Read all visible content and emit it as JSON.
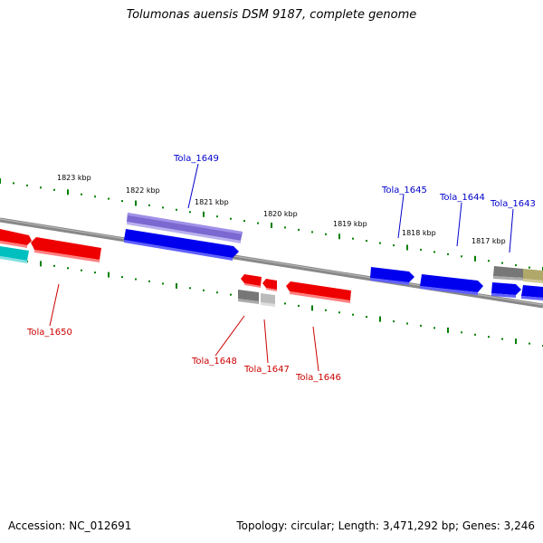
{
  "title": "Tolumonas auensis DSM 9187, complete genome",
  "footer": {
    "accession": "Accession: NC_012691",
    "topology": "Topology: circular; Length: 3,471,292 bp; Genes: 3,246"
  },
  "colors": {
    "forward_gene": "#0000ee",
    "reverse_gene": "#ee0000",
    "rna_gene": "#00bfbf",
    "pseudo_gene": "#7b68d0",
    "other_feature": "#777777",
    "other_feature_2": "#b0a86a",
    "backbone": "#888888",
    "scale_ticks": "#008000",
    "forward_label": "#0000cc",
    "reverse_label": "#cc0000"
  },
  "scale_labels": [
    {
      "text": "1823 kbp"
    },
    {
      "text": "1822 kbp"
    },
    {
      "text": "1821 kbp"
    },
    {
      "text": "1820 kbp"
    },
    {
      "text": "1819 kbp"
    },
    {
      "text": "1818 kbp"
    },
    {
      "text": "1817 kbp"
    }
  ],
  "gene_labels": [
    {
      "text": "Tola_1649",
      "strand": "forward"
    },
    {
      "text": "Tola_1645",
      "strand": "forward"
    },
    {
      "text": "Tola_1644",
      "strand": "forward"
    },
    {
      "text": "Tola_1643",
      "strand": "forward"
    },
    {
      "text": "Tola_1650",
      "strand": "reverse"
    },
    {
      "text": "Tola_1648",
      "strand": "reverse"
    },
    {
      "text": "Tola_1647",
      "strand": "reverse"
    },
    {
      "text": "Tola_1646",
      "strand": "reverse"
    }
  ]
}
